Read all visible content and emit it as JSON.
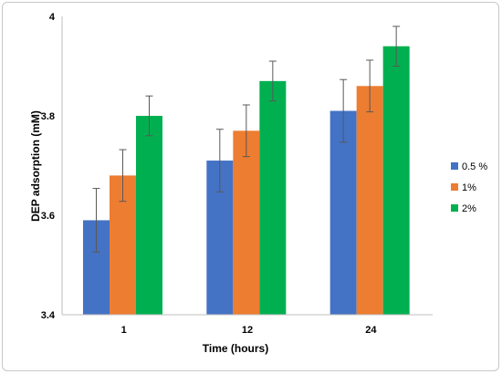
{
  "chart_data": {
    "type": "bar",
    "xlabel": "Time (hours)",
    "ylabel": "DEP adsorption (mM)",
    "categories": [
      "1",
      "12",
      "24"
    ],
    "ylim": [
      3.4,
      4
    ],
    "yticks": [
      3.4,
      3.6,
      3.8,
      4
    ],
    "ytick_labels": [
      "3.4",
      "3.6",
      "3.8",
      "4"
    ],
    "grid": false,
    "legend": "right",
    "series": [
      {
        "name": "0.5 %",
        "color": "#4472c4",
        "values": [
          3.59,
          3.71,
          3.81
        ],
        "errors": [
          0.064,
          0.063,
          0.063
        ]
      },
      {
        "name": "1%",
        "color": "#ed7d31",
        "values": [
          3.68,
          3.77,
          3.86
        ],
        "errors": [
          0.052,
          0.052,
          0.052
        ]
      },
      {
        "name": "2%",
        "color": "#00b050",
        "values": [
          3.8,
          3.87,
          3.94
        ],
        "errors": [
          0.04,
          0.04,
          0.04
        ]
      }
    ]
  }
}
